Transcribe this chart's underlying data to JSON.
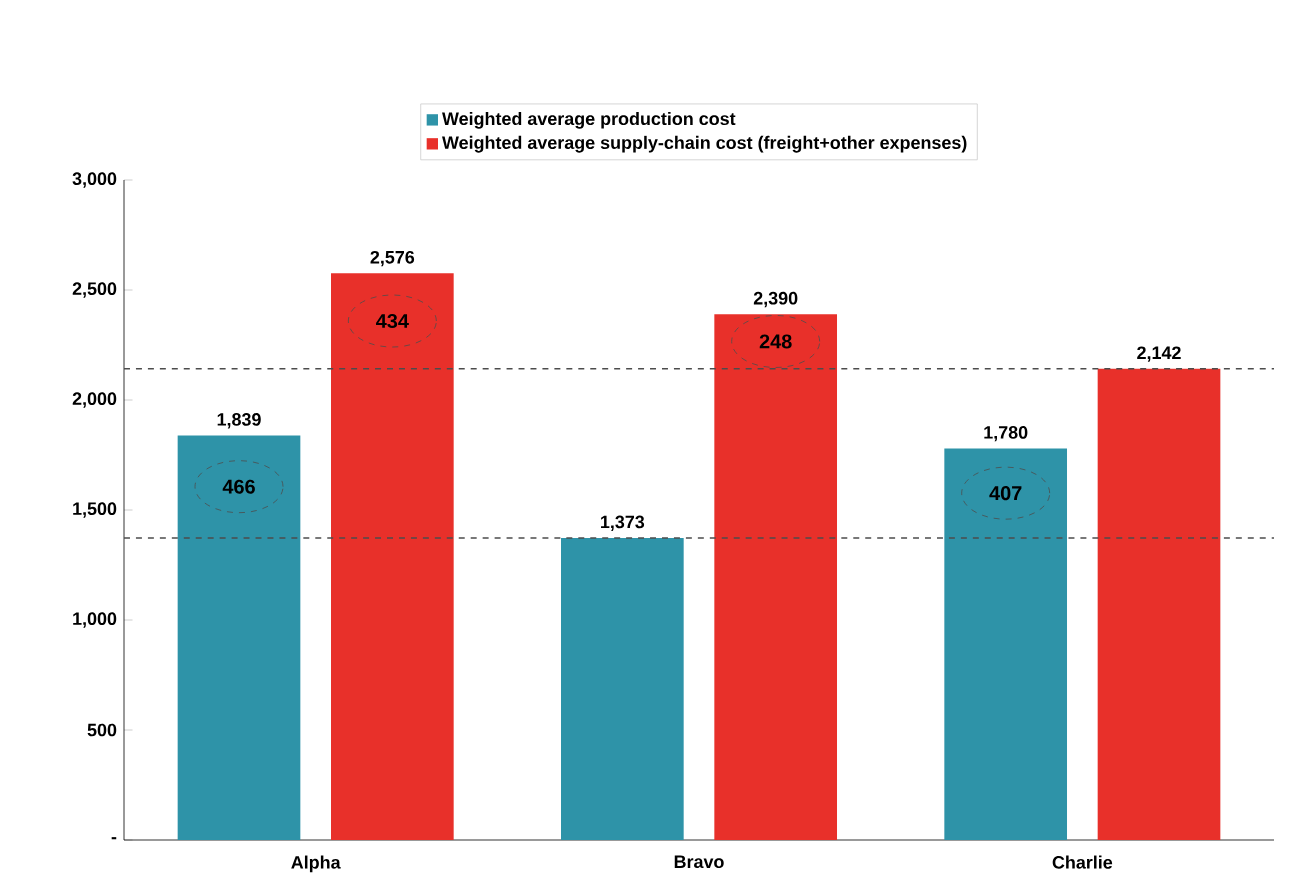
{
  "chart_data": {
    "type": "bar",
    "categories": [
      "Alpha",
      "Bravo",
      "Charlie"
    ],
    "series": [
      {
        "name": "Weighted average production cost",
        "color": "#2e93a8",
        "values": [
          1839,
          1373,
          1780
        ],
        "value_labels": [
          "1,839",
          "1,373",
          "1,780"
        ]
      },
      {
        "name": "Weighted average supply-chain cost (freight+other expenses)",
        "color": "#e8302a",
        "values": [
          2576,
          2390,
          2142
        ],
        "value_labels": [
          "2,576",
          "2,390",
          "2,142"
        ]
      }
    ],
    "ylim": [
      0,
      3000
    ],
    "yticks": [
      {
        "value": 0,
        "label": "-"
      },
      500,
      {
        "value": 1000,
        "label": "1,000"
      },
      {
        "value": 1500,
        "label": "1,500"
      },
      {
        "value": 2000,
        "label": "2,000"
      },
      {
        "value": 2500,
        "label": "2,500"
      },
      {
        "value": 3000,
        "label": "3,000"
      }
    ],
    "ref_lines": [
      {
        "axis": "y",
        "value": 2142,
        "line_style": "dashed"
      },
      {
        "axis": "y",
        "value": 1373,
        "line_style": "dashed"
      }
    ],
    "annotations": [
      "466",
      "434",
      "248",
      "407"
    ],
    "legend": "top",
    "grid": false
  }
}
